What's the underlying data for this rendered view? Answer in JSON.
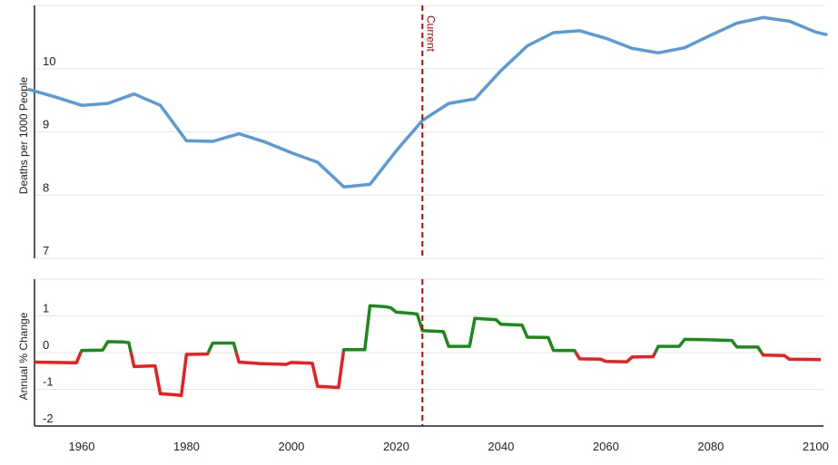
{
  "colors": {
    "line": "#5b9bd5",
    "positive": "#1a8a1a",
    "negative": "#ee1c1c",
    "current": "#c00000",
    "grid": "#e6e6e6",
    "axis": "#222222"
  },
  "chart_data": [
    {
      "type": "line",
      "ylabel": "Deaths per 1000 People",
      "ylim": [
        7,
        11
      ],
      "yticks": [
        7,
        8,
        9,
        10
      ],
      "grid": true,
      "annotation": {
        "x": 2025,
        "label": "Current"
      },
      "series": [
        {
          "values": [
            [
              1950,
              9.67
            ],
            [
              1955,
              9.55
            ],
            [
              1960,
              9.42
            ],
            [
              1965,
              9.45
            ],
            [
              1970,
              9.6
            ],
            [
              1975,
              9.42
            ],
            [
              1980,
              8.86
            ],
            [
              1985,
              8.85
            ],
            [
              1990,
              8.97
            ],
            [
              1995,
              8.84
            ],
            [
              2000,
              8.67
            ],
            [
              2005,
              8.52
            ],
            [
              2010,
              8.13
            ],
            [
              2015,
              8.17
            ],
            [
              2020,
              8.7
            ],
            [
              2025,
              9.18
            ],
            [
              2030,
              9.45
            ],
            [
              2035,
              9.52
            ],
            [
              2040,
              9.97
            ],
            [
              2045,
              10.36
            ],
            [
              2050,
              10.57
            ],
            [
              2055,
              10.6
            ],
            [
              2060,
              10.48
            ],
            [
              2065,
              10.32
            ],
            [
              2070,
              10.25
            ],
            [
              2075,
              10.33
            ],
            [
              2080,
              10.53
            ],
            [
              2085,
              10.72
            ],
            [
              2090,
              10.81
            ],
            [
              2095,
              10.75
            ],
            [
              2100,
              10.58
            ],
            [
              2102,
              10.54
            ]
          ]
        }
      ]
    },
    {
      "type": "line",
      "ylabel": "Annual % Change",
      "ylim": [
        -2,
        2
      ],
      "yticks": [
        -2,
        -1,
        0,
        1
      ],
      "xlim": [
        1951,
        2101.5
      ],
      "xticks": [
        1960,
        1980,
        2000,
        2020,
        2040,
        2060,
        2080,
        2100
      ],
      "grid": true,
      "annotation": {
        "x": 2025
      },
      "series": [
        {
          "step_points": [
            [
              1951,
              -0.26
            ],
            [
              1955,
              -0.27
            ],
            [
              1959,
              -0.28
            ],
            [
              1960,
              0.06
            ],
            [
              1964,
              0.07
            ],
            [
              1965,
              0.3
            ],
            [
              1968,
              0.29
            ],
            [
              1969,
              0.27
            ],
            [
              1970,
              -0.38
            ],
            [
              1974,
              -0.36
            ],
            [
              1975,
              -1.12
            ],
            [
              1978,
              -1.15
            ],
            [
              1979,
              -1.17
            ],
            [
              1980,
              -0.05
            ],
            [
              1984,
              -0.04
            ],
            [
              1985,
              0.26
            ],
            [
              1989,
              0.26
            ],
            [
              1990,
              -0.26
            ],
            [
              1994,
              -0.3
            ],
            [
              1999,
              -0.32
            ],
            [
              2000,
              -0.27
            ],
            [
              2004,
              -0.29
            ],
            [
              2005,
              -0.92
            ],
            [
              2008,
              -0.94
            ],
            [
              2009,
              -0.95
            ],
            [
              2010,
              0.08
            ],
            [
              2014,
              0.08
            ],
            [
              2015,
              1.28
            ],
            [
              2018,
              1.25
            ],
            [
              2019,
              1.22
            ],
            [
              2020,
              1.1
            ],
            [
              2023,
              1.07
            ],
            [
              2024,
              1.05
            ],
            [
              2025,
              0.6
            ],
            [
              2029,
              0.57
            ],
            [
              2030,
              0.17
            ],
            [
              2034,
              0.17
            ],
            [
              2035,
              0.93
            ],
            [
              2039,
              0.9
            ],
            [
              2040,
              0.77
            ],
            [
              2044,
              0.75
            ],
            [
              2045,
              0.42
            ],
            [
              2049,
              0.41
            ],
            [
              2050,
              0.06
            ],
            [
              2054,
              0.06
            ],
            [
              2055,
              -0.17
            ],
            [
              2059,
              -0.18
            ],
            [
              2060,
              -0.24
            ],
            [
              2064,
              -0.25
            ],
            [
              2065,
              -0.12
            ],
            [
              2069,
              -0.11
            ],
            [
              2070,
              0.17
            ],
            [
              2074,
              0.17
            ],
            [
              2075,
              0.36
            ],
            [
              2079,
              0.35
            ],
            [
              2084,
              0.33
            ],
            [
              2085,
              0.15
            ],
            [
              2089,
              0.15
            ],
            [
              2090,
              -0.07
            ],
            [
              2094,
              -0.08
            ],
            [
              2095,
              -0.18
            ],
            [
              2101,
              -0.19
            ]
          ]
        }
      ]
    }
  ]
}
